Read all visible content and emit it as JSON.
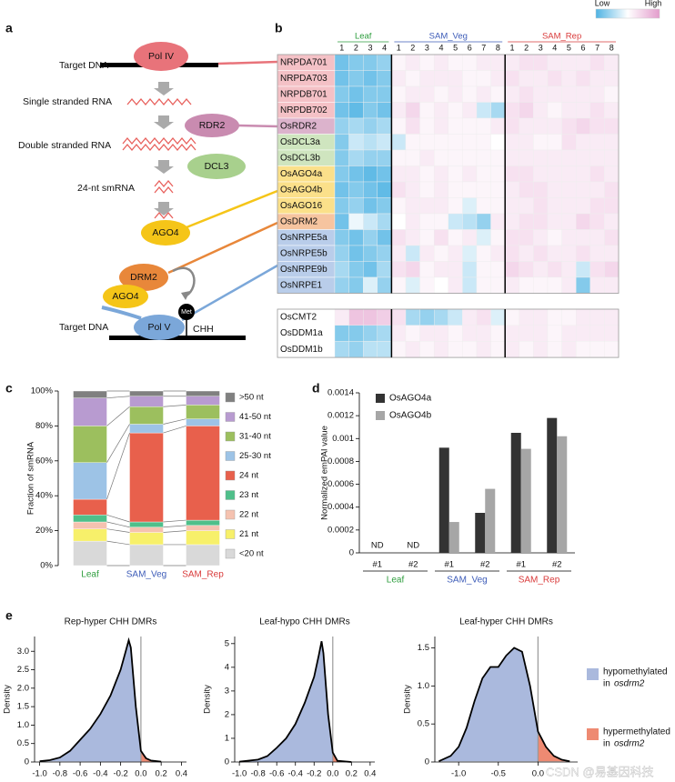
{
  "panel_labels": [
    "a",
    "b",
    "c",
    "d",
    "e"
  ],
  "diagram": {
    "target_dna_top": "Target DNA",
    "pol4": "Pol IV",
    "ssrna": "Single stranded RNA",
    "rdr2": "RDR2",
    "dsrna": "Double stranded RNA",
    "dcl3": "DCL3",
    "smrna": "24-nt smRNA",
    "ago4": "AGO4",
    "drm2": "DRM2",
    "ago4_b": "AGO4",
    "met": "Met",
    "pol5": "Pol V",
    "chh": "CHH",
    "target_dna_bottom": "Target DNA"
  },
  "heatmap": {
    "legend": {
      "low": "Low",
      "high": "High"
    },
    "color_range": [
      -1,
      1
    ],
    "colors": {
      "low": "#4fb3e3",
      "mid": "#ffffff",
      "high": "#e39ccc"
    },
    "groups": [
      {
        "name": "Leaf",
        "color": "#2e9e3e",
        "columns": [
          "1",
          "2",
          "3",
          "4"
        ]
      },
      {
        "name": "SAM_Veg",
        "color": "#3d5cb8",
        "columns": [
          "1",
          "2",
          "3",
          "4",
          "5",
          "6",
          "7",
          "8"
        ]
      },
      {
        "name": "SAM_Rep",
        "color": "#d93a3a",
        "columns": [
          "1",
          "2",
          "3",
          "4",
          "5",
          "6",
          "7",
          "8"
        ]
      }
    ],
    "rows": [
      {
        "label": "NRPDA701",
        "color": "#f4c1c6",
        "values": [
          -0.8,
          -0.7,
          -0.7,
          -0.6,
          0.1,
          0.2,
          0.1,
          0.2,
          0.1,
          0.1,
          0.2,
          0.2,
          0.2,
          0.3,
          0.3,
          0.2,
          0.2,
          0.2,
          0.3,
          0.2
        ]
      },
      {
        "label": "NRPDA703",
        "color": "#f4c1c6",
        "values": [
          -0.8,
          -0.7,
          -0.8,
          -0.7,
          0.2,
          0.1,
          0.2,
          0.2,
          0.2,
          0.1,
          0.1,
          0.2,
          0.3,
          0.2,
          0.2,
          0.3,
          0.2,
          0.3,
          0.2,
          0.2
        ]
      },
      {
        "label": "NRPDB701",
        "color": "#f4c1c6",
        "values": [
          -0.7,
          -0.8,
          -0.7,
          -0.7,
          0.1,
          0.2,
          0.2,
          0.1,
          0.2,
          0.1,
          0.2,
          0.1,
          0.2,
          0.3,
          0.2,
          0.2,
          0.2,
          0.2,
          0.2,
          0.1
        ]
      },
      {
        "label": "NRPDB702",
        "color": "#f4c1c6",
        "values": [
          -0.8,
          -0.9,
          -0.7,
          -0.8,
          0.2,
          0.4,
          0.1,
          0.2,
          0.1,
          0.2,
          -0.3,
          -0.5,
          0.3,
          0.4,
          0.2,
          0.1,
          0.2,
          0.2,
          0.3,
          0.2
        ]
      },
      {
        "label": "OsRDR2",
        "color": "#dcb3cc",
        "values": [
          -0.6,
          -0.5,
          -0.6,
          -0.5,
          0.1,
          0.3,
          0.1,
          0.2,
          0.1,
          0.1,
          0.1,
          0.2,
          0.3,
          0.2,
          0.2,
          0.2,
          0.3,
          0.4,
          0.3,
          0.3
        ]
      },
      {
        "label": "OsDCL3a",
        "color": "#cfe5bf",
        "values": [
          -0.7,
          -0.3,
          -0.4,
          -0.3,
          -0.3,
          0.1,
          0.1,
          0.1,
          0.1,
          0.1,
          0.1,
          0.0,
          0.2,
          0.2,
          0.1,
          0.1,
          0.3,
          0.2,
          0.2,
          0.2
        ]
      },
      {
        "label": "OsDCL3b",
        "color": "#cfe5bf",
        "values": [
          -0.7,
          -0.5,
          -0.6,
          -0.6,
          0.1,
          0.1,
          0.2,
          0.1,
          0.1,
          0.1,
          0.1,
          0.1,
          0.2,
          0.2,
          0.2,
          0.2,
          0.2,
          0.2,
          0.2,
          0.2
        ]
      },
      {
        "label": "OsAGO4a",
        "color": "#fbe08a",
        "values": [
          -0.7,
          -0.8,
          -0.9,
          -0.8,
          0.2,
          0.2,
          0.1,
          0.2,
          0.1,
          0.2,
          0.1,
          0.1,
          0.3,
          0.3,
          0.2,
          0.2,
          0.2,
          0.2,
          0.3,
          0.2
        ]
      },
      {
        "label": "OsAGO4b",
        "color": "#fbe08a",
        "values": [
          -0.8,
          -0.7,
          -0.8,
          -0.9,
          0.3,
          0.2,
          0.1,
          0.2,
          0.1,
          0.1,
          0.1,
          0.1,
          0.2,
          0.3,
          0.3,
          0.2,
          0.2,
          0.2,
          0.2,
          0.3
        ]
      },
      {
        "label": "OsAGO16",
        "color": "#fbe08a",
        "values": [
          -0.7,
          -0.6,
          -0.8,
          -0.7,
          0.1,
          0.2,
          0.2,
          0.2,
          0.1,
          -0.2,
          0.1,
          0.1,
          0.2,
          0.2,
          0.3,
          0.2,
          0.2,
          0.2,
          0.3,
          0.3
        ]
      },
      {
        "label": "OsDRM2",
        "color": "#f6c49f",
        "values": [
          -0.8,
          -0.1,
          -0.3,
          -0.5,
          0.0,
          0.2,
          0.1,
          0.1,
          -0.3,
          -0.4,
          -0.6,
          0.2,
          0.2,
          0.3,
          0.3,
          0.2,
          0.2,
          0.4,
          0.3,
          0.2
        ]
      },
      {
        "label": "OsNRPE5a",
        "color": "#b9cdea",
        "values": [
          -0.7,
          -0.8,
          -0.6,
          -0.8,
          0.3,
          0.2,
          0.1,
          0.3,
          0.1,
          0.2,
          -0.2,
          0.1,
          0.3,
          0.3,
          0.2,
          0.1,
          0.2,
          0.2,
          0.2,
          0.3
        ]
      },
      {
        "label": "OsNRPE5b",
        "color": "#b9cdea",
        "values": [
          -0.6,
          -0.8,
          -0.7,
          -0.6,
          0.2,
          -0.3,
          0.2,
          0.1,
          0.2,
          -0.2,
          0.1,
          0.2,
          0.3,
          0.2,
          0.3,
          0.2,
          0.2,
          0.3,
          0.2,
          0.2
        ]
      },
      {
        "label": "OsNRPE9b",
        "color": "#b9cdea",
        "values": [
          -0.5,
          -0.7,
          -0.8,
          -0.5,
          0.3,
          0.4,
          0.1,
          0.2,
          0.2,
          -0.3,
          0.1,
          0.1,
          0.4,
          0.3,
          0.2,
          0.3,
          0.2,
          -0.3,
          0.3,
          0.4
        ]
      },
      {
        "label": "OsNRPE1",
        "color": "#b9cdea",
        "values": [
          -0.6,
          -0.7,
          -0.2,
          -0.6,
          0.1,
          -0.2,
          0.1,
          0.0,
          0.2,
          -0.3,
          0.1,
          0.1,
          0.2,
          0.1,
          0.1,
          0.1,
          0.2,
          -0.7,
          0.2,
          0.2
        ]
      }
    ],
    "rows_lower": [
      {
        "label": "OsCMT2",
        "values": [
          0.2,
          0.6,
          0.6,
          0.5,
          0.3,
          -0.5,
          -0.6,
          -0.5,
          -0.3,
          0.2,
          0.3,
          -0.2,
          0.1,
          0.2,
          0.2,
          0.1,
          0.1,
          0.2,
          0.2,
          0.2
        ]
      },
      {
        "label": "OsDDM1a",
        "values": [
          -0.7,
          -0.7,
          -0.6,
          -0.5,
          0.2,
          0.1,
          0.2,
          0.2,
          0.1,
          0.2,
          0.2,
          0.1,
          0.2,
          0.2,
          0.2,
          0.1,
          0.2,
          0.2,
          0.2,
          0.2
        ]
      },
      {
        "label": "OsDDM1b",
        "values": [
          -0.5,
          -0.6,
          -0.4,
          -0.4,
          0.1,
          0.2,
          0.1,
          0.2,
          0.1,
          0.1,
          0.2,
          0.1,
          0.2,
          0.1,
          0.2,
          0.1,
          0.2,
          0.1,
          0.1,
          0.1
        ]
      }
    ]
  },
  "chart_data": [
    {
      "type": "bar",
      "stacked": true,
      "ylabel": "Fraction of smRNA",
      "categories": [
        "Leaf",
        "SAM_Veg",
        "SAM_Rep"
      ],
      "category_colors": [
        "#2e9e3e",
        "#3d5cb8",
        "#d93a3a"
      ],
      "ylim": [
        0,
        100
      ],
      "yticks": [
        {
          "value": 0,
          "label": "0%"
        },
        {
          "value": 20,
          "label": "20%"
        },
        {
          "value": 40,
          "label": "40%"
        },
        {
          "value": 60,
          "label": "60%"
        },
        {
          "value": 80,
          "label": "80%"
        },
        {
          "value": 100,
          "label": "100%"
        }
      ],
      "series": [
        {
          "name": "<20 nt",
          "color": "#d9d9d9",
          "values": [
            14,
            12,
            12
          ]
        },
        {
          "name": "21 nt",
          "color": "#f7f06a",
          "values": [
            7,
            7,
            8
          ]
        },
        {
          "name": "22 nt",
          "color": "#f5c2b0",
          "values": [
            4,
            3,
            3
          ]
        },
        {
          "name": "23 nt",
          "color": "#4fbf8a",
          "values": [
            4,
            3,
            3
          ]
        },
        {
          "name": "24 nt",
          "color": "#e8604c",
          "values": [
            9,
            51,
            54
          ]
        },
        {
          "name": "25-30 nt",
          "color": "#9dc3e6",
          "values": [
            21,
            5,
            4
          ]
        },
        {
          "name": "31-40 nt",
          "color": "#9cbf5e",
          "values": [
            21,
            10,
            8
          ]
        },
        {
          "name": "41-50 nt",
          "color": "#b89bd0",
          "values": [
            16,
            6,
            5
          ]
        },
        {
          "name": ">50 nt",
          "color": "#808080",
          "values": [
            4,
            3,
            3
          ]
        }
      ]
    },
    {
      "type": "bar",
      "ylabel": "Normalized emPAI value",
      "categories": [
        "#1",
        "#2",
        "#1",
        "#2",
        "#1",
        "#2"
      ],
      "category_groups": [
        "Leaf",
        "SAM_Veg",
        "SAM_Rep"
      ],
      "group_colors": [
        "#2e9e3e",
        "#3d5cb8",
        "#d93a3a"
      ],
      "ylim": [
        0,
        0.0014
      ],
      "yticks": [
        0,
        0.0002,
        0.0004,
        0.0006,
        0.0008,
        0.001,
        0.0012,
        0.0014
      ],
      "series": [
        {
          "name": "OsAGO4a",
          "color": "#333333",
          "values": [
            null,
            null,
            0.00092,
            0.00035,
            0.00105,
            0.00118
          ],
          "value_labels": [
            "ND",
            "ND",
            null,
            null,
            null,
            null
          ]
        },
        {
          "name": "OsAGO4b",
          "color": "#a6a6a6",
          "values": [
            null,
            null,
            0.00027,
            0.00056,
            0.00091,
            0.00102
          ]
        }
      ]
    },
    {
      "type": "density",
      "title": "Rep-hyper CHH DMRs",
      "ylabel": "Density",
      "vline": 0,
      "fill_colors": {
        "below": "#aab9dd",
        "above": "#ee8a72"
      },
      "x": [
        -1.0,
        -0.9,
        -0.8,
        -0.7,
        -0.6,
        -0.5,
        -0.4,
        -0.3,
        -0.2,
        -0.15,
        -0.12,
        -0.1,
        -0.05,
        0,
        0.05,
        0.1,
        0.2
      ],
      "values": [
        0.02,
        0.05,
        0.12,
        0.3,
        0.6,
        0.9,
        1.3,
        1.8,
        2.5,
        3.0,
        3.3,
        3.1,
        1.5,
        0.3,
        0.1,
        0.04,
        0.01
      ],
      "xlim": [
        -1.05,
        0.45
      ],
      "xticks": [
        {
          "value": -1,
          "label": "-1.0"
        },
        -0.8,
        -0.6,
        -0.4,
        -0.2,
        {
          "value": 0,
          "label": "0.0"
        },
        0.2,
        0.4
      ],
      "ylim": [
        0,
        3.4
      ],
      "yticks": [
        0,
        0.5,
        {
          "value": 1,
          "label": "1.0"
        },
        1.5,
        {
          "value": 2,
          "label": "2.0"
        },
        2.5,
        {
          "value": 3,
          "label": "3.0"
        }
      ]
    },
    {
      "type": "density",
      "title": "Leaf-hypo CHH DMRs",
      "ylabel": "Density",
      "vline": 0,
      "fill_colors": {
        "below": "#aab9dd",
        "above": "#ee8a72"
      },
      "x": [
        -1.0,
        -0.8,
        -0.7,
        -0.6,
        -0.5,
        -0.4,
        -0.3,
        -0.2,
        -0.15,
        -0.12,
        -0.1,
        -0.05,
        0,
        0.05,
        0.2
      ],
      "values": [
        0.01,
        0.1,
        0.25,
        0.6,
        1.0,
        1.6,
        2.5,
        3.6,
        4.5,
        5.1,
        4.6,
        2.0,
        0.4,
        0.05,
        0.0
      ],
      "xlim": [
        -1.05,
        0.45
      ],
      "xticks": [
        {
          "value": -1,
          "label": "-1.0"
        },
        -0.8,
        -0.6,
        -0.4,
        -0.2,
        {
          "value": 0,
          "label": "0.0"
        },
        0.2,
        0.4
      ],
      "ylim": [
        0,
        5.3
      ],
      "yticks": [
        0,
        1,
        2,
        3,
        4,
        5
      ]
    },
    {
      "type": "density",
      "title": "Leaf-hyper CHH DMRs",
      "ylabel": "Density",
      "vline": 0,
      "fill_colors": {
        "below": "#aab9dd",
        "above": "#ee8a72"
      },
      "x": [
        -1.25,
        -1.1,
        -1.0,
        -0.9,
        -0.8,
        -0.7,
        -0.6,
        -0.5,
        -0.4,
        -0.3,
        -0.2,
        -0.1,
        0,
        0.05,
        0.1,
        0.2,
        0.3,
        0.4
      ],
      "values": [
        0.01,
        0.08,
        0.2,
        0.45,
        0.8,
        1.1,
        1.25,
        1.25,
        1.4,
        1.5,
        1.45,
        1.0,
        0.4,
        0.3,
        0.2,
        0.08,
        0.03,
        0.01
      ],
      "xlim": [
        -1.3,
        0.5
      ],
      "xticks": [
        {
          "value": -1,
          "label": "-1.0"
        },
        -0.5,
        {
          "value": 0,
          "label": "0.0"
        }
      ],
      "ylim": [
        0,
        1.65
      ],
      "yticks": [
        0,
        0.5,
        {
          "value": 1,
          "label": "1.0"
        },
        1.5
      ],
      "legend": [
        {
          "line1": "hypomethylated",
          "line2": "in",
          "gene": "osdrm2",
          "color": "#aab9dd"
        },
        {
          "line1": "hypermethylated",
          "line2": "in",
          "gene": "osdrm2",
          "color": "#ee8a72"
        }
      ]
    }
  ],
  "watermark": "CSDN @易基因科技"
}
